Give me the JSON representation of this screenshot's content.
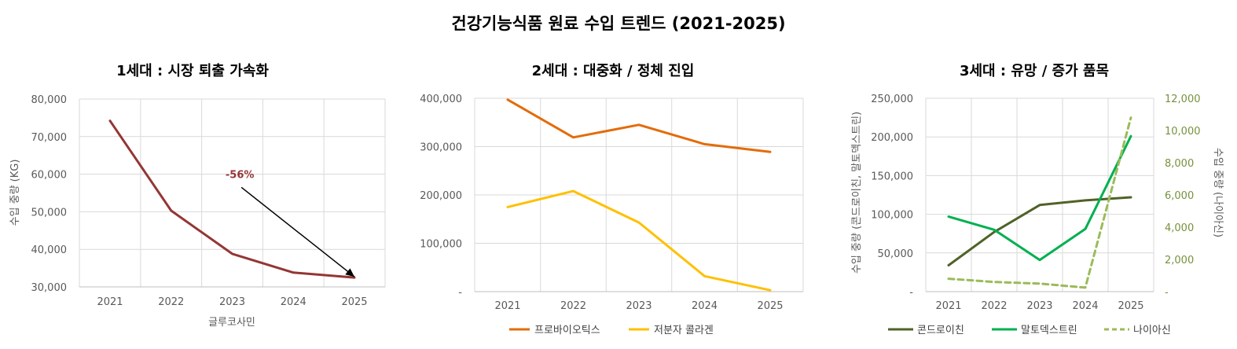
{
  "main_title": "건강기능식품 원료 수입 트렌드 (2021-2025)",
  "chart_data": [
    {
      "type": "line",
      "title": "1세대 : 시장 퇴출 가속화",
      "categories": [
        "2021",
        "2022",
        "2023",
        "2024",
        "2025"
      ],
      "xlabel": "글루코사민",
      "ylabel": "수입 중량 (KG)",
      "ylim": [
        30000,
        80000
      ],
      "yticks": [
        30000,
        40000,
        50000,
        60000,
        70000,
        80000
      ],
      "ytick_labels": [
        "30,000",
        "40,000",
        "50,000",
        "60,000",
        "70,000",
        "80,000"
      ],
      "series": [
        {
          "name": "글루코사민",
          "color": "#943634",
          "dash": false,
          "axis": "left",
          "values": [
            74200,
            50300,
            38800,
            33800,
            32500
          ]
        }
      ],
      "annotation": {
        "text": "-56%",
        "color": "#943634",
        "from_point": [
          2.15,
          56500
        ],
        "to_point": [
          4.0,
          32700
        ]
      }
    },
    {
      "type": "line",
      "title": "2세대 : 대중화 / 정체 진입",
      "categories": [
        "2021",
        "2022",
        "2023",
        "2024",
        "2025"
      ],
      "ylim": [
        0,
        400000
      ],
      "yticks": [
        0,
        100000,
        200000,
        300000,
        400000
      ],
      "ytick_labels": [
        "-",
        "100,000",
        "200,000",
        "300,000",
        "400,000"
      ],
      "series": [
        {
          "name": "프로바이오틱스",
          "color": "#E36C0A",
          "dash": false,
          "axis": "left",
          "values": [
            397000,
            319000,
            345000,
            305000,
            289000
          ]
        },
        {
          "name": "저분자 콜라겐",
          "color": "#FFC000",
          "dash": false,
          "axis": "left",
          "values": [
            175000,
            208000,
            143000,
            32000,
            3000
          ]
        }
      ]
    },
    {
      "type": "line",
      "title": "3세대 : 유망 / 증가 품목",
      "categories": [
        "2021",
        "2022",
        "2023",
        "2024",
        "2025"
      ],
      "ylabel": "수입 중량 (콘드로이친, 말토덱스트린)",
      "ylabel_right": "수입 중량 (나이아신)",
      "ylim": [
        0,
        250000
      ],
      "yticks": [
        0,
        50000,
        100000,
        150000,
        200000,
        250000
      ],
      "ytick_labels": [
        "-",
        "50,000",
        "100,000",
        "150,000",
        "200,000",
        "250,000"
      ],
      "ylim_right": [
        0,
        12000
      ],
      "yticks_right": [
        0,
        2000,
        4000,
        6000,
        8000,
        10000,
        12000
      ],
      "ytick_labels_right": [
        "-",
        "2,000",
        "4,000",
        "6,000",
        "8,000",
        "10,000",
        "12,000"
      ],
      "series": [
        {
          "name": "콘드로이친",
          "color": "#4F6228",
          "dash": false,
          "axis": "left",
          "values": [
            34000,
            77000,
            112000,
            118000,
            122000
          ]
        },
        {
          "name": "말토덱스트린",
          "color": "#00B050",
          "dash": false,
          "axis": "left",
          "values": [
            97000,
            80000,
            41000,
            81000,
            201000
          ]
        },
        {
          "name": "나이아신",
          "color": "#9BBB59",
          "dash": true,
          "axis": "right",
          "values": [
            800,
            600,
            500,
            250,
            10800
          ]
        }
      ]
    }
  ]
}
